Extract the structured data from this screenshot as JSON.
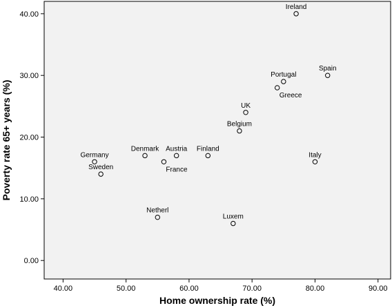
{
  "chart_data": {
    "type": "scatter",
    "title": "",
    "xlabel": "Home ownership rate (%)",
    "ylabel": "Poverty rate 65+ years (%)",
    "xlim": [
      37,
      92
    ],
    "ylim": [
      -3,
      42
    ],
    "xticks": [
      40,
      50,
      60,
      70,
      80,
      90
    ],
    "yticks": [
      0,
      10,
      20,
      30,
      40
    ],
    "xtick_labels": [
      "40.00",
      "50.00",
      "60.00",
      "70.00",
      "80.00",
      "90.00"
    ],
    "ytick_labels": [
      "0.00",
      "10.00",
      "20.00",
      "30.00",
      "40.00"
    ],
    "grid": false,
    "legend": "none",
    "colors": {
      "plot_background": "#f2f2f2",
      "marker": "#000000"
    },
    "points": [
      {
        "label": "Ireland",
        "x": 77,
        "y": 40,
        "label_pos": "above"
      },
      {
        "label": "Spain",
        "x": 82,
        "y": 30,
        "label_pos": "above"
      },
      {
        "label": "Portugal",
        "x": 75,
        "y": 29,
        "label_pos": "above"
      },
      {
        "label": "Greece",
        "x": 74,
        "y": 28,
        "label_pos": "below-right"
      },
      {
        "label": "UK",
        "x": 69,
        "y": 24,
        "label_pos": "above"
      },
      {
        "label": "Belgium",
        "x": 68,
        "y": 21,
        "label_pos": "above"
      },
      {
        "label": "Finland",
        "x": 63,
        "y": 17,
        "label_pos": "above"
      },
      {
        "label": "Austria",
        "x": 58,
        "y": 17,
        "label_pos": "above"
      },
      {
        "label": "Denmark",
        "x": 53,
        "y": 17,
        "label_pos": "above"
      },
      {
        "label": "France",
        "x": 56,
        "y": 16,
        "label_pos": "below-right"
      },
      {
        "label": "Germany",
        "x": 45,
        "y": 16,
        "label_pos": "above"
      },
      {
        "label": "Sweden",
        "x": 46,
        "y": 14,
        "label_pos": "above"
      },
      {
        "label": "Italy",
        "x": 80,
        "y": 16,
        "label_pos": "above"
      },
      {
        "label": "Netherl",
        "x": 55,
        "y": 7,
        "label_pos": "above"
      },
      {
        "label": "Luxem",
        "x": 67,
        "y": 6,
        "label_pos": "above"
      }
    ]
  }
}
